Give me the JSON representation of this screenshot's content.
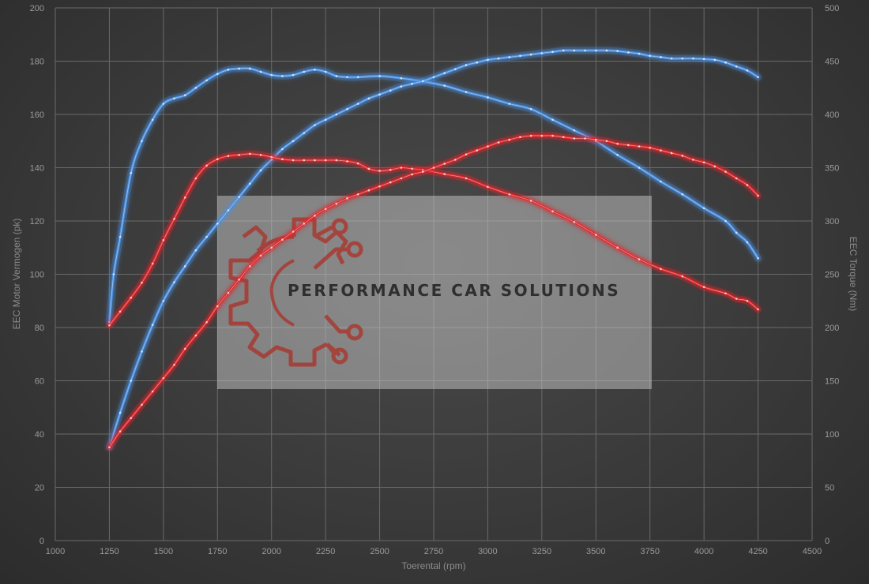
{
  "watermark": {
    "brand": "PERFORMANCE CAR SOLUTIONS",
    "logo_icon": "gear-circuit-icon",
    "logo_color": "#c0392b"
  },
  "chart_data": {
    "type": "line",
    "xlabel": "Toerental (rpm)",
    "ylabel": "EEC Motor Vermogen (pk)",
    "y2label": "EEC Torque (Nm)",
    "xlim": [
      1000,
      4500
    ],
    "ylim": [
      0,
      200
    ],
    "y2lim": [
      0,
      500
    ],
    "xticks": [
      1000,
      1250,
      1500,
      1750,
      2000,
      2250,
      2500,
      2750,
      3000,
      3250,
      3500,
      3750,
      4000,
      4250,
      4500
    ],
    "yticks": [
      0,
      20,
      40,
      60,
      80,
      100,
      120,
      140,
      160,
      180,
      200
    ],
    "y2ticks": [
      0,
      50,
      100,
      150,
      200,
      250,
      300,
      350,
      400,
      450,
      500
    ],
    "grid": true,
    "colors": {
      "tuned": "#4a90e2",
      "stock": "#e0262a"
    },
    "series": [
      {
        "color": "tuned",
        "axis": "right",
        "x": [
          1250,
          1270,
          1300,
          1350,
          1400,
          1450,
          1500,
          1550,
          1600,
          1650,
          1700,
          1750,
          1800,
          1850,
          1900,
          1950,
          2000,
          2050,
          2100,
          2150,
          2200,
          2250,
          2300,
          2350,
          2400,
          2500,
          2600,
          2700,
          2800,
          2900,
          3000,
          3100,
          3200,
          3300,
          3400,
          3500,
          3600,
          3700,
          3800,
          3900,
          4000,
          4100,
          4150,
          4200,
          4250
        ],
        "y": [
          205,
          250,
          285,
          345,
          375,
          395,
          410,
          415,
          418,
          425,
          432,
          438,
          442,
          443,
          443,
          440,
          437,
          436,
          437,
          440,
          442,
          440,
          436,
          435,
          435,
          436,
          434,
          431,
          427,
          421,
          416,
          410,
          405,
          395,
          385,
          375,
          362,
          350,
          337,
          325,
          312,
          300,
          289,
          280,
          265
        ]
      },
      {
        "color": "tuned",
        "axis": "left",
        "x": [
          1250,
          1300,
          1350,
          1400,
          1450,
          1500,
          1550,
          1600,
          1650,
          1700,
          1750,
          1800,
          1850,
          1900,
          1950,
          2000,
          2050,
          2100,
          2150,
          2200,
          2250,
          2300,
          2350,
          2400,
          2450,
          2500,
          2550,
          2600,
          2650,
          2700,
          2750,
          2800,
          2850,
          2900,
          2950,
          3000,
          3050,
          3100,
          3150,
          3200,
          3250,
          3300,
          3350,
          3400,
          3450,
          3500,
          3550,
          3600,
          3650,
          3700,
          3750,
          3800,
          3850,
          3900,
          3950,
          4000,
          4050,
          4100,
          4150,
          4200,
          4250
        ],
        "y": [
          35,
          48,
          60,
          71,
          81,
          90,
          97,
          103,
          109,
          114,
          119,
          124,
          129,
          134,
          139,
          143,
          147,
          150,
          153,
          156,
          158,
          160,
          162,
          164,
          166,
          167.5,
          169,
          170.5,
          171.5,
          172.5,
          174,
          175.5,
          177,
          178.5,
          179.5,
          180.5,
          181,
          181.5,
          182,
          182.5,
          183,
          183.5,
          184,
          184,
          184,
          184,
          184,
          183.8,
          183.3,
          182.8,
          182,
          181.5,
          181,
          181,
          181,
          180.8,
          180.5,
          179.5,
          178,
          176.5,
          174
        ]
      },
      {
        "color": "stock",
        "axis": "right",
        "x": [
          1250,
          1300,
          1350,
          1400,
          1450,
          1500,
          1550,
          1600,
          1650,
          1700,
          1750,
          1800,
          1850,
          1900,
          1950,
          2000,
          2050,
          2100,
          2150,
          2200,
          2250,
          2300,
          2350,
          2400,
          2450,
          2500,
          2550,
          2600,
          2650,
          2700,
          2800,
          2900,
          3000,
          3100,
          3200,
          3300,
          3400,
          3500,
          3600,
          3700,
          3800,
          3900,
          4000,
          4100,
          4150,
          4200,
          4250
        ],
        "y": [
          202,
          215,
          228,
          242,
          260,
          282,
          302,
          322,
          340,
          352,
          358,
          361,
          362,
          363,
          362,
          360,
          358,
          357,
          357,
          357,
          357,
          357,
          356,
          354,
          349,
          347,
          348,
          350,
          349,
          348,
          344,
          340,
          332,
          325,
          319,
          309,
          299,
          287,
          275,
          264,
          255,
          248,
          238,
          232,
          227,
          225,
          217
        ]
      },
      {
        "color": "stock",
        "axis": "left",
        "x": [
          1250,
          1300,
          1350,
          1400,
          1450,
          1500,
          1550,
          1600,
          1650,
          1700,
          1750,
          1800,
          1850,
          1900,
          1950,
          2000,
          2050,
          2100,
          2150,
          2200,
          2250,
          2300,
          2350,
          2400,
          2450,
          2500,
          2550,
          2600,
          2650,
          2700,
          2750,
          2800,
          2850,
          2900,
          2950,
          3000,
          3050,
          3100,
          3150,
          3200,
          3250,
          3300,
          3350,
          3400,
          3450,
          3500,
          3550,
          3600,
          3650,
          3700,
          3750,
          3800,
          3850,
          3900,
          3950,
          4000,
          4050,
          4100,
          4150,
          4200,
          4250
        ],
        "y": [
          35,
          41,
          46,
          51,
          56,
          61,
          66,
          72,
          77,
          82,
          88,
          93,
          98,
          103,
          107,
          110,
          113,
          116,
          119,
          122,
          124.5,
          126.5,
          128.5,
          130,
          131.5,
          133,
          134.5,
          136,
          137.5,
          138.5,
          140,
          141.5,
          143,
          145,
          146.5,
          148,
          149.5,
          150.5,
          151.5,
          152,
          152,
          152,
          151.5,
          151,
          151,
          150.5,
          150,
          149,
          148.5,
          148,
          147.5,
          146.5,
          145.5,
          144.5,
          143,
          142,
          140.5,
          138.5,
          136,
          133.5,
          129.5
        ]
      }
    ]
  }
}
